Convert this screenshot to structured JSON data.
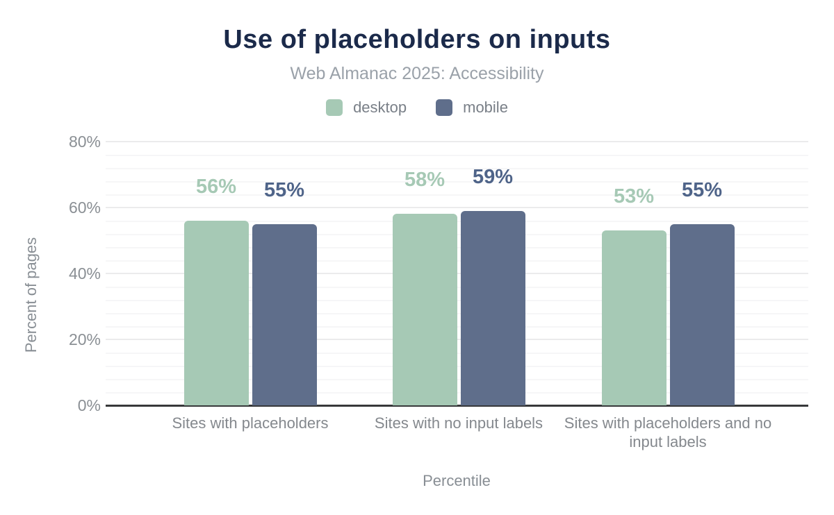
{
  "title": "Use of placeholders on inputs",
  "subtitle": "Web Almanac 2025: Accessibility",
  "colors": {
    "title": "#1b2a4a",
    "subtitle": "#9aa1a9",
    "axis_text": "#8a8f94",
    "axis_line": "#37383a",
    "grid_major": "#ebebec",
    "grid_minor": "#f6f6f7",
    "desktop_bar": "#a6c9b5",
    "mobile_bar": "#5f6e8b",
    "desktop_value_label": "#a6c9b5",
    "mobile_value_label": "#4f6489"
  },
  "chart_data": {
    "type": "bar",
    "title": "Use of placeholders on inputs",
    "subtitle": "Web Almanac 2025: Accessibility",
    "categories": [
      "Sites with placeholders",
      "Sites with no input labels",
      "Sites with placeholders and no input labels"
    ],
    "series": [
      {
        "name": "desktop",
        "values": [
          56,
          58,
          53
        ],
        "labels": [
          "56%",
          "58%",
          "53%"
        ],
        "color": "#a6c9b5",
        "label_color": "#a6c9b5"
      },
      {
        "name": "mobile",
        "values": [
          55,
          59,
          55
        ],
        "labels": [
          "55%",
          "59%",
          "55%"
        ],
        "color": "#5f6e8b",
        "label_color": "#4f6489"
      }
    ],
    "xlabel": "Percentile",
    "ylabel": "Percent of pages",
    "ylim": [
      0,
      80
    ],
    "yticks": [
      {
        "value": 0,
        "label": "0%"
      },
      {
        "value": 20,
        "label": "20%"
      },
      {
        "value": 40,
        "label": "40%"
      },
      {
        "value": 60,
        "label": "60%"
      },
      {
        "value": 80,
        "label": "80%"
      }
    ],
    "grid": "horizontal; major every 20%, minor every 4%",
    "legend_position": "top",
    "data_labels_shown": true
  }
}
